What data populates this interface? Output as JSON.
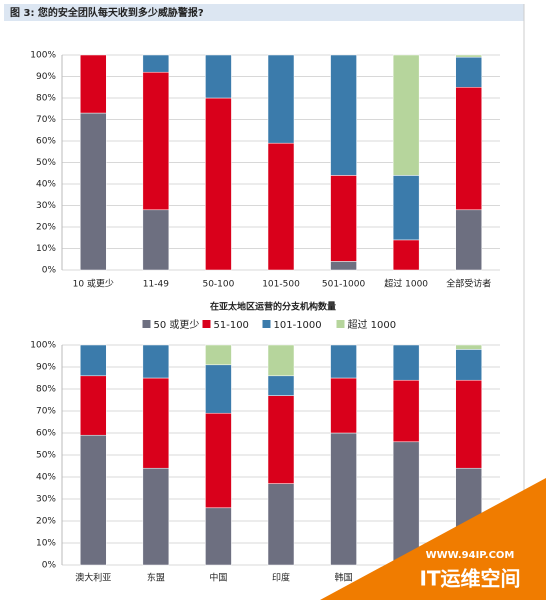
{
  "title": "图 3: 您的安全团队每天收到多少威胁警报?",
  "watermark": {
    "url": "WWW.94IP.COM",
    "name": "IT运维空间"
  },
  "chart_data": [
    {
      "type": "bar",
      "stacked": true,
      "categories": [
        "10 或更少",
        "11-49",
        "50-100",
        "101-500",
        "501-1000",
        "超过 1000",
        "全部受访者"
      ],
      "series": [
        {
          "name": "50 或更少",
          "color": "#6d6f80",
          "values": [
            73,
            28,
            0,
            0,
            4,
            0,
            28
          ]
        },
        {
          "name": "51-100",
          "color": "#d9001b",
          "values": [
            27,
            64,
            80,
            59,
            40,
            14,
            57
          ]
        },
        {
          "name": "101-1000",
          "color": "#3b7bab",
          "values": [
            0,
            8,
            20,
            41,
            56,
            30,
            14
          ]
        },
        {
          "name": "超过 1000",
          "color": "#b6d59c",
          "values": [
            0,
            0,
            0,
            0,
            0,
            56,
            1
          ]
        }
      ],
      "ylim": [
        0,
        100
      ],
      "yticks": [
        {
          "value": 0,
          "label": "0%"
        },
        {
          "value": 10,
          "label": "10%"
        },
        {
          "value": 20,
          "label": "20%"
        },
        {
          "value": 30,
          "label": "30%"
        },
        {
          "value": 40,
          "label": "40%"
        },
        {
          "value": 50,
          "label": "50%"
        },
        {
          "value": 60,
          "label": "60%"
        },
        {
          "value": 70,
          "label": "70%"
        },
        {
          "value": 80,
          "label": "80%"
        },
        {
          "value": 90,
          "label": "90%"
        },
        {
          "value": 100,
          "label": "100%"
        }
      ],
      "grid": true
    },
    {
      "type": "bar",
      "stacked": true,
      "legend_title": "在亚太地区运营的分支机构数量",
      "categories": [
        "澳大利亚",
        "东盟",
        "中国",
        "印度",
        "韩国",
        null,
        null
      ],
      "series": [
        {
          "color": "#6d6f80",
          "values": [
            59,
            44,
            26,
            37,
            60,
            56,
            44
          ]
        },
        {
          "color": "#d9001b",
          "values": [
            27,
            41,
            43,
            40,
            25,
            28,
            40
          ]
        },
        {
          "color": "#3b7bab",
          "values": [
            14,
            15,
            22,
            9,
            15,
            16,
            14
          ]
        },
        {
          "color": "#b6d59c",
          "values": [
            0,
            0,
            9,
            14,
            0,
            0,
            2
          ]
        }
      ],
      "ylim": [
        0,
        100
      ],
      "yticks": [
        {
          "value": 0,
          "label": "0%"
        },
        {
          "value": 10,
          "label": "10%"
        },
        {
          "value": 20,
          "label": "20%"
        },
        {
          "value": 30,
          "label": "30%"
        },
        {
          "value": 40,
          "label": "40%"
        },
        {
          "value": 50,
          "label": "50%"
        },
        {
          "value": 60,
          "label": "60%"
        },
        {
          "value": 70,
          "label": "70%"
        },
        {
          "value": 80,
          "label": "80%"
        },
        {
          "value": 90,
          "label": "90%"
        },
        {
          "value": 100,
          "label": "100%"
        }
      ],
      "grid": true
    }
  ]
}
